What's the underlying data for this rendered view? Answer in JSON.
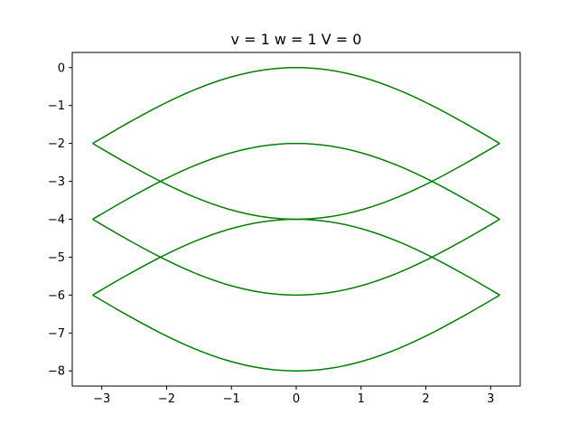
{
  "chart_data": {
    "type": "line",
    "title": "v = 1  w = 1  V = 0",
    "xlabel": "",
    "ylabel": "",
    "xlim": [
      -3.4558,
      3.4558
    ],
    "ylim": [
      -8.4,
      0.4
    ],
    "xticks": [
      -3,
      -2,
      -1,
      0,
      1,
      2,
      3
    ],
    "xtick_labels": [
      "−3",
      "−2",
      "−1",
      "0",
      "1",
      "2",
      "3"
    ],
    "yticks": [
      0,
      -1,
      -2,
      -3,
      -4,
      -5,
      -6,
      -7,
      -8
    ],
    "ytick_labels": [
      "0",
      "−1",
      "−2",
      "−3",
      "−4",
      "−5",
      "−6",
      "−7",
      "−8"
    ],
    "grid": false,
    "color": "#008000",
    "x": [
      -3.1416,
      -2.618,
      -2.0944,
      -1.5708,
      -1.0472,
      -0.5236,
      0,
      0.5236,
      1.0472,
      1.5708,
      2.0944,
      2.618,
      3.1416
    ],
    "series": [
      {
        "values": [
          -2,
          -1.482,
          -1,
          -0.586,
          -0.268,
          -0.068,
          0,
          -0.068,
          -0.268,
          -0.586,
          -1,
          -1.482,
          -2
        ]
      },
      {
        "values": [
          -2,
          -2.518,
          -3,
          -3.414,
          -3.732,
          -3.932,
          -4,
          -3.932,
          -3.732,
          -3.414,
          -3,
          -2.518,
          -2
        ]
      },
      {
        "values": [
          -4,
          -3.482,
          -3,
          -2.586,
          -2.268,
          -2.068,
          -2,
          -2.068,
          -2.268,
          -2.586,
          -3,
          -3.482,
          -4
        ]
      },
      {
        "values": [
          -4,
          -4.518,
          -5,
          -5.414,
          -5.732,
          -5.932,
          -6,
          -5.932,
          -5.732,
          -5.414,
          -5,
          -4.518,
          -4
        ]
      },
      {
        "values": [
          -6,
          -5.482,
          -5,
          -4.586,
          -4.268,
          -4.068,
          -4,
          -4.068,
          -4.268,
          -4.586,
          -5,
          -5.482,
          -6
        ]
      },
      {
        "values": [
          -6,
          -6.518,
          -7,
          -7.414,
          -7.732,
          -7.932,
          -8,
          -7.932,
          -7.732,
          -7.414,
          -7,
          -6.518,
          -6
        ]
      }
    ]
  }
}
